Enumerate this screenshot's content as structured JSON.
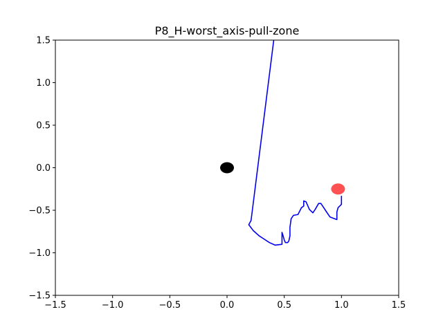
{
  "chart_data": {
    "type": "line",
    "title": "P8_H-worst_axis-pull-zone",
    "xlabel": "",
    "ylabel": "",
    "xlim": [
      -1.5,
      1.5
    ],
    "ylim": [
      -1.5,
      1.5
    ],
    "xticks": [
      -1.5,
      -1.0,
      -0.5,
      0.0,
      0.5,
      1.0,
      1.5
    ],
    "yticks": [
      -1.5,
      -1.0,
      -0.5,
      0.0,
      0.5,
      1.0,
      1.5
    ],
    "xtick_labels": [
      "−1.5",
      "−1.0",
      "−0.5",
      "0.0",
      "0.5",
      "1.0",
      "1.5"
    ],
    "ytick_labels": [
      "−1.5",
      "−1.0",
      "−0.5",
      "0.0",
      "0.5",
      "1.0",
      "1.5"
    ],
    "grid": false,
    "series": [
      {
        "name": "trajectory",
        "color": "#0000ee",
        "points": [
          [
            1.0,
            -0.33
          ],
          [
            1.0,
            -0.43
          ],
          [
            0.97,
            -0.47
          ],
          [
            0.96,
            -0.52
          ],
          [
            0.96,
            -0.61
          ],
          [
            0.9,
            -0.58
          ],
          [
            0.87,
            -0.52
          ],
          [
            0.84,
            -0.46
          ],
          [
            0.82,
            -0.42
          ],
          [
            0.8,
            -0.42
          ],
          [
            0.77,
            -0.49
          ],
          [
            0.75,
            -0.53
          ],
          [
            0.72,
            -0.49
          ],
          [
            0.69,
            -0.4
          ],
          [
            0.67,
            -0.39
          ],
          [
            0.67,
            -0.45
          ],
          [
            0.65,
            -0.47
          ],
          [
            0.62,
            -0.55
          ],
          [
            0.58,
            -0.56
          ],
          [
            0.56,
            -0.6
          ],
          [
            0.55,
            -0.7
          ],
          [
            0.55,
            -0.8
          ],
          [
            0.54,
            -0.86
          ],
          [
            0.53,
            -0.88
          ],
          [
            0.51,
            -0.88
          ],
          [
            0.5,
            -0.85
          ],
          [
            0.49,
            -0.8
          ],
          [
            0.48,
            -0.76
          ],
          [
            0.48,
            -0.9
          ],
          [
            0.42,
            -0.91
          ],
          [
            0.37,
            -0.88
          ],
          [
            0.28,
            -0.8
          ],
          [
            0.23,
            -0.74
          ],
          [
            0.19,
            -0.67
          ],
          [
            0.21,
            -0.62
          ],
          [
            0.41,
            1.52
          ]
        ]
      }
    ],
    "markers": [
      {
        "name": "origin",
        "x": 0.0,
        "y": 0.0,
        "color": "#000000"
      },
      {
        "name": "target",
        "x": 0.97,
        "y": -0.25,
        "color": "#ff3333"
      }
    ]
  }
}
